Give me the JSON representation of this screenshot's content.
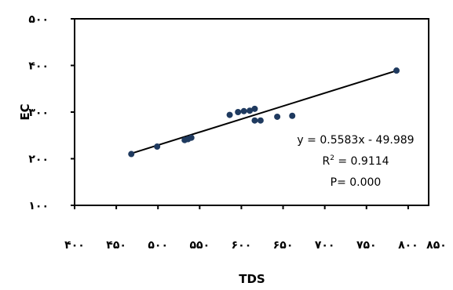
{
  "chart_data": {
    "type": "scatter",
    "title": "",
    "xlabel": "TDS",
    "ylabel": "EC",
    "xlim": [
      400,
      850
    ],
    "ylim": [
      100,
      500
    ],
    "x_ticks": [
      400,
      450,
      500,
      550,
      600,
      650,
      700,
      750,
      800,
      850
    ],
    "y_ticks": [
      100,
      200,
      300,
      400,
      500
    ],
    "x_tick_labels": [
      "۴۰۰",
      "۴۵۰",
      "۵۰۰",
      "۵۵۰",
      "۶۰۰",
      "۶۵۰",
      "۷۰۰",
      "۷۵۰",
      "۸۰۰",
      "۸۵۰"
    ],
    "y_tick_labels": [
      "۱۰۰",
      "۲۰۰",
      "۳۰۰",
      "۴۰۰",
      "۵۰۰"
    ],
    "grid": false,
    "legend": "none",
    "series": [
      {
        "points": [
          [
            468,
            210
          ],
          [
            499,
            226
          ],
          [
            532,
            240
          ],
          [
            536,
            242
          ],
          [
            540,
            245
          ],
          [
            586,
            294
          ],
          [
            596,
            300
          ],
          [
            603,
            302
          ],
          [
            610,
            303
          ],
          [
            616,
            307
          ],
          [
            616,
            282
          ],
          [
            623,
            282
          ],
          [
            643,
            290
          ],
          [
            661,
            292
          ],
          [
            786,
            389
          ]
        ],
        "color": "#1f3a5f"
      }
    ],
    "trendline": {
      "slope": 0.5583,
      "intercept": -49.989,
      "x_range": [
        468,
        786
      ],
      "color": "#000000"
    },
    "annotations": {
      "equation": "y = 0.5583x - 49.989",
      "r2_prefix": "R",
      "r2_sup": "2",
      "r2_value": " = 0.9114",
      "p_value": "P= 0.000"
    }
  }
}
